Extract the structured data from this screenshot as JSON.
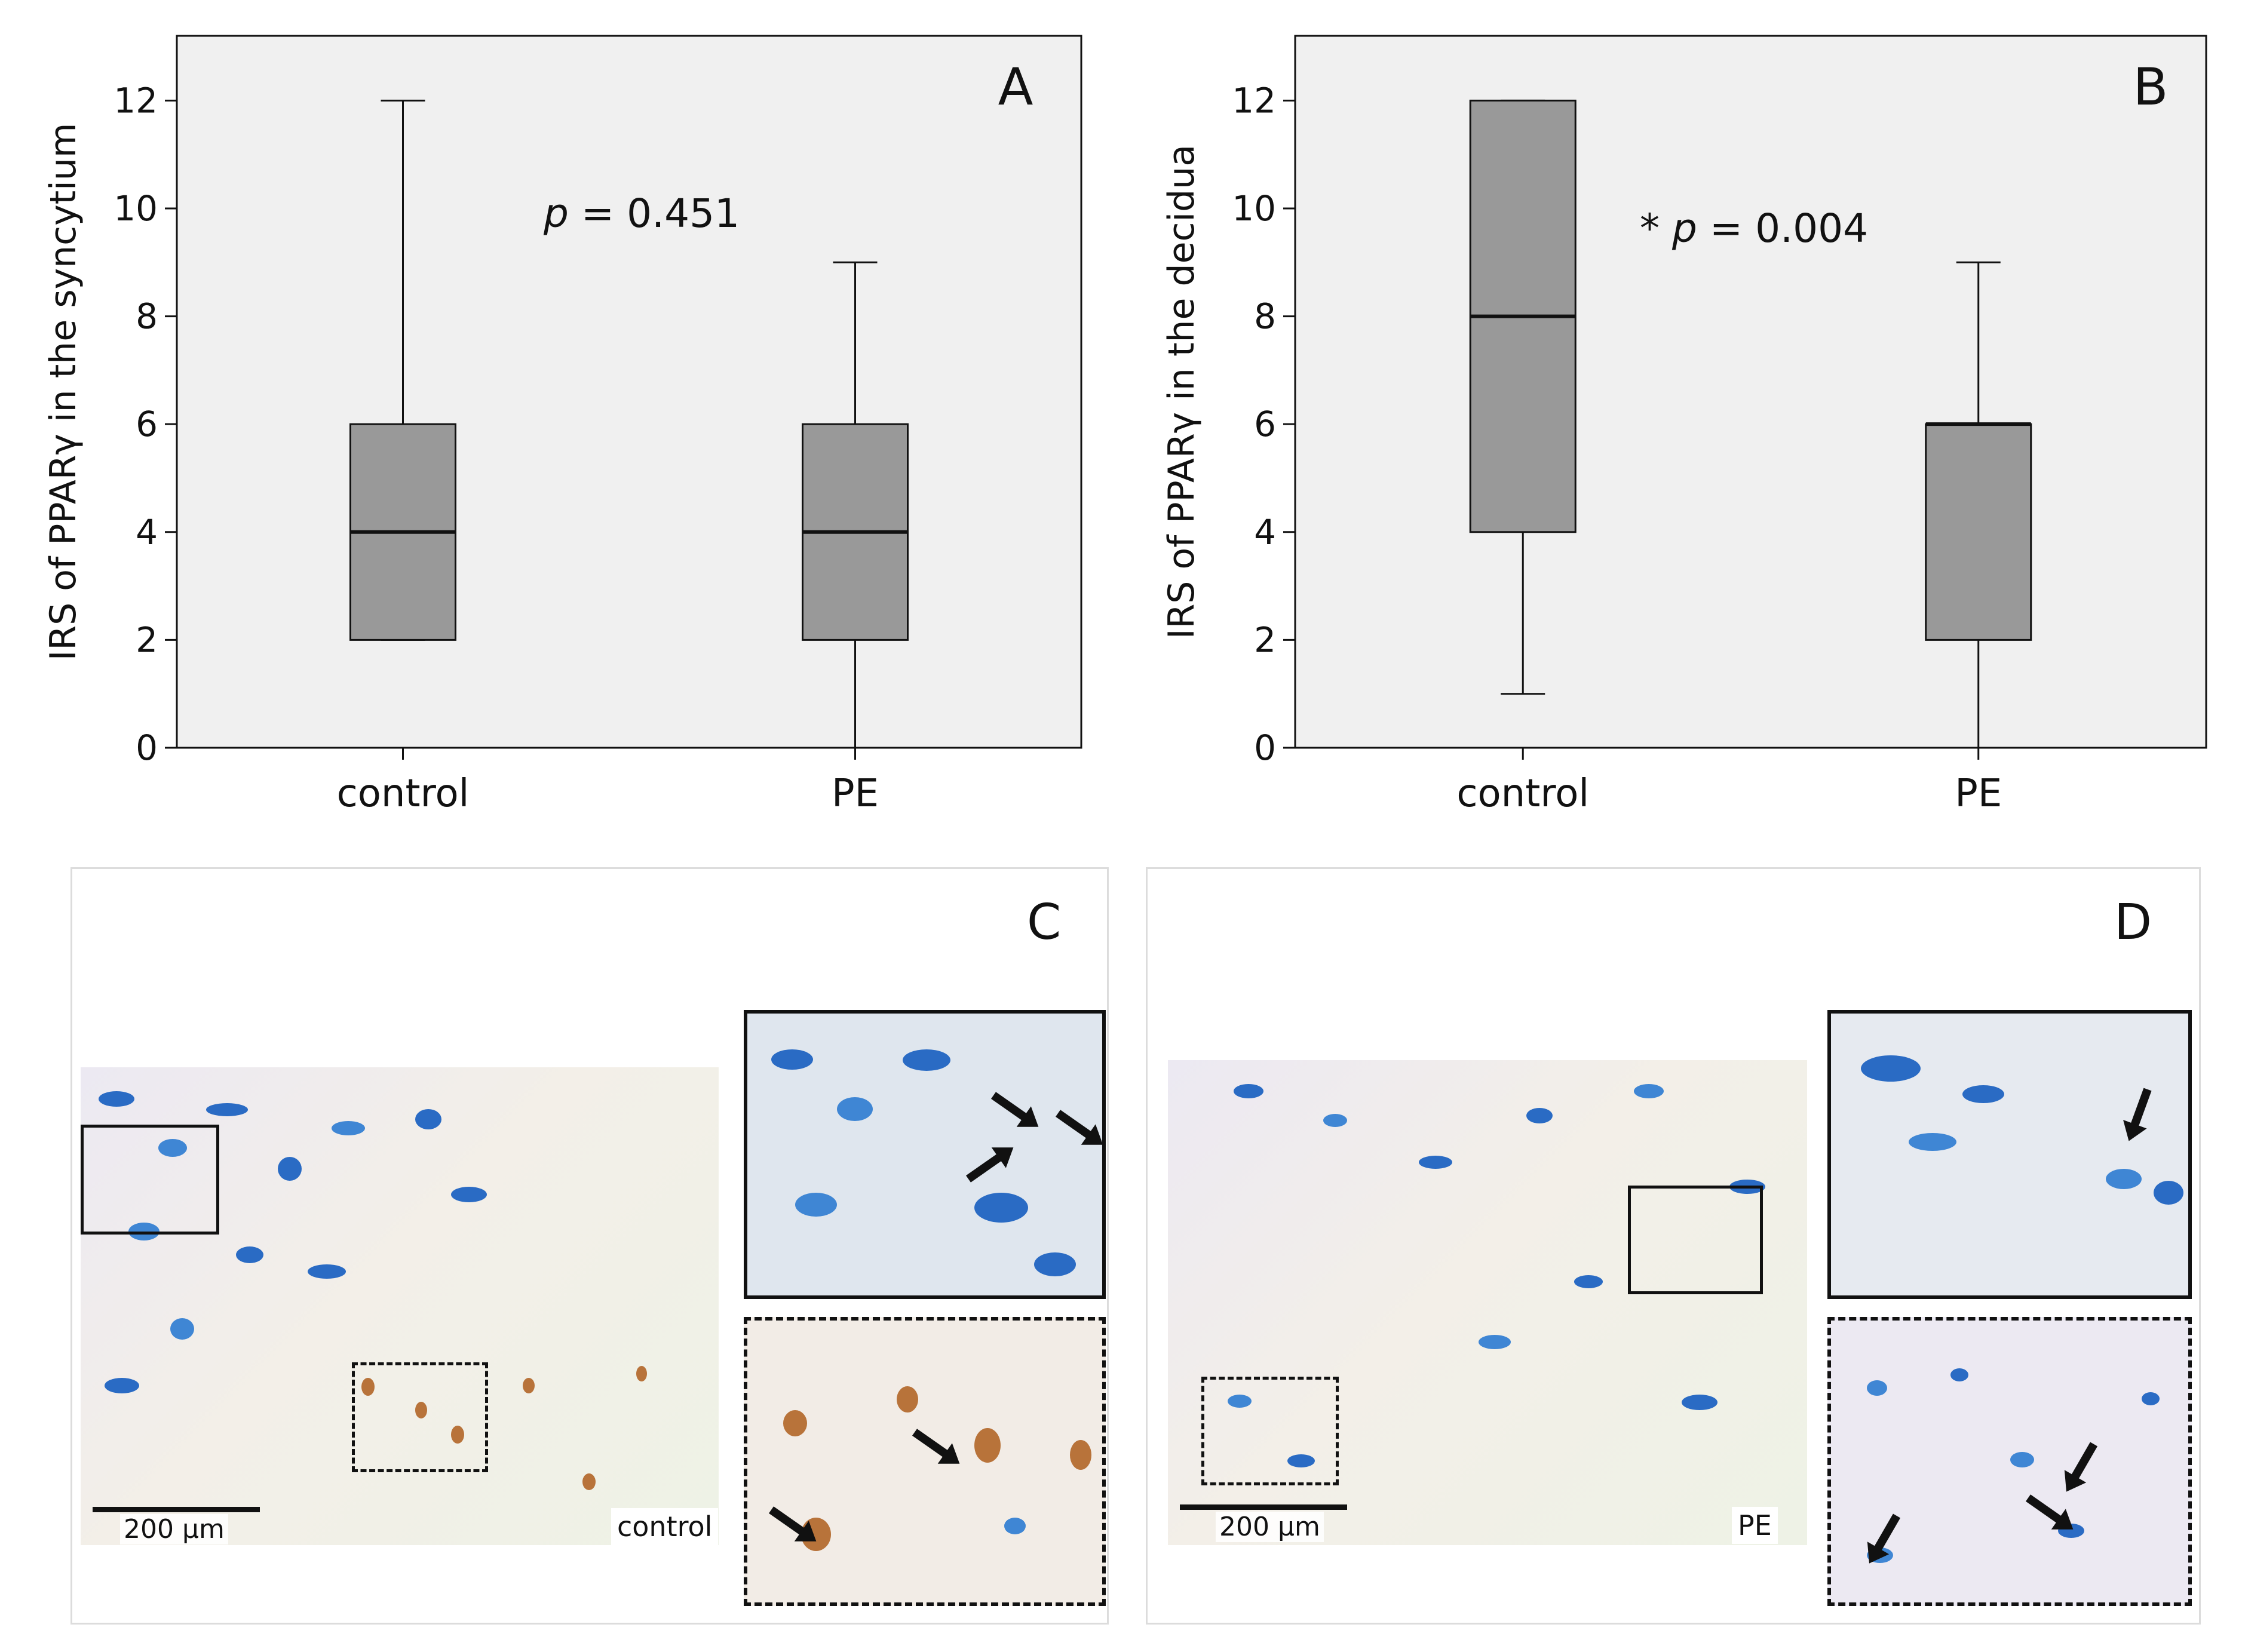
{
  "chart_data": [
    {
      "panel": "A",
      "type": "box",
      "ylabel": "IRS of PPARγ in the syncytium",
      "xlabel": "",
      "ylim": [
        0,
        13.2
      ],
      "yticks": [
        0,
        2,
        4,
        6,
        8,
        10,
        12
      ],
      "categories": [
        "control",
        "PE"
      ],
      "boxes": [
        {
          "name": "control",
          "min": 2,
          "q1": 2,
          "median": 4,
          "q3": 6,
          "max": 12
        },
        {
          "name": "PE",
          "min": 0,
          "q1": 2,
          "median": 4,
          "q3": 6,
          "max": 9
        }
      ],
      "annotation": {
        "prefix": "",
        "p_symbol": "p",
        "rest": " = 0.451"
      },
      "grid": false
    },
    {
      "panel": "B",
      "type": "box",
      "ylabel": "IRS of PPARγ in the decidua",
      "xlabel": "",
      "ylim": [
        0,
        13.2
      ],
      "yticks": [
        0,
        2,
        4,
        6,
        8,
        10,
        12
      ],
      "categories": [
        "control",
        "PE"
      ],
      "boxes": [
        {
          "name": "control",
          "min": 1,
          "q1": 4,
          "median": 8,
          "q3": 12,
          "max": 12
        },
        {
          "name": "PE",
          "min": 0,
          "q1": 2,
          "median": 6,
          "q3": 6,
          "max": 9
        }
      ],
      "annotation": {
        "prefix": "* ",
        "p_symbol": "p",
        "rest": " = 0.004"
      },
      "grid": false
    }
  ],
  "micrographs": {
    "C": {
      "letter": "C",
      "scale_label": "200 µm",
      "group_label": "control"
    },
    "D": {
      "letter": "D",
      "scale_label": "200 µm",
      "group_label": "PE"
    }
  },
  "colors": {
    "plot_background": "#f0f0f0",
    "box_fill": "#999999",
    "line": "#111111"
  }
}
